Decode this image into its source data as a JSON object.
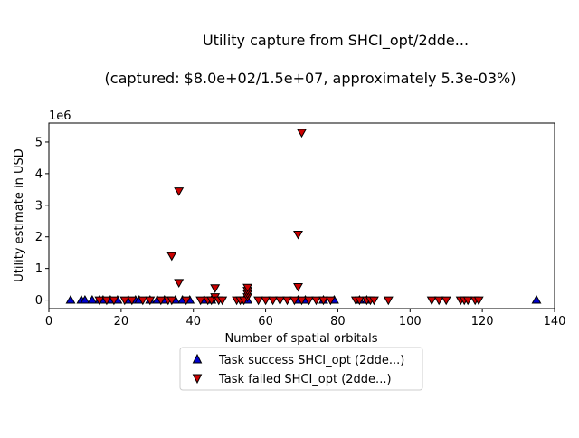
{
  "chart_data": {
    "type": "scatter",
    "title": "Utility capture from SHCI_opt/2dde...",
    "subtitle": "(captured: $8.0e+02/1.5e+07, approximately 5.3e-03%)",
    "xlabel": "Number of spatial orbitals",
    "ylabel": "Utility estimate in USD",
    "y_offset_label": "1e6",
    "xlim": [
      0,
      140
    ],
    "ylim": [
      -0.27,
      5.6
    ],
    "y_scale_factor": 1000000,
    "x_ticks": [
      0,
      20,
      40,
      60,
      80,
      100,
      120,
      140
    ],
    "y_ticks": [
      0,
      1,
      2,
      3,
      4,
      5
    ],
    "grid": false,
    "legend_position": "bottom-center",
    "series": [
      {
        "name": "Task success SHCI_opt (2dde...)",
        "marker": "triangle-up",
        "color": "#0000cc",
        "points": [
          [
            6,
            0
          ],
          [
            9,
            0
          ],
          [
            10,
            0
          ],
          [
            12,
            0
          ],
          [
            14,
            0
          ],
          [
            15,
            0
          ],
          [
            17,
            0
          ],
          [
            19,
            0
          ],
          [
            22,
            0
          ],
          [
            24,
            0
          ],
          [
            25,
            0
          ],
          [
            28,
            0
          ],
          [
            30,
            0
          ],
          [
            32,
            0
          ],
          [
            35,
            0
          ],
          [
            37,
            0
          ],
          [
            39,
            0
          ],
          [
            43,
            0
          ],
          [
            45,
            0
          ],
          [
            54,
            0
          ],
          [
            55,
            0
          ],
          [
            69,
            0
          ],
          [
            71,
            0
          ],
          [
            76,
            0
          ],
          [
            79,
            0
          ],
          [
            86,
            0
          ],
          [
            88,
            0
          ],
          [
            135,
            0
          ]
        ]
      },
      {
        "name": "Task failed SHCI_opt (2dde...)",
        "marker": "triangle-down",
        "color": "#cc0000",
        "points": [
          [
            14,
            0
          ],
          [
            16,
            0
          ],
          [
            18,
            0
          ],
          [
            21,
            0
          ],
          [
            23,
            0
          ],
          [
            26,
            0
          ],
          [
            28,
            0
          ],
          [
            31,
            0
          ],
          [
            33,
            0
          ],
          [
            34,
            0
          ],
          [
            34,
            1.4
          ],
          [
            36,
            0.55
          ],
          [
            36,
            3.45
          ],
          [
            38,
            0
          ],
          [
            42,
            0
          ],
          [
            44,
            0
          ],
          [
            45,
            0
          ],
          [
            46,
            0.1
          ],
          [
            46,
            0.38
          ],
          [
            47,
            0
          ],
          [
            48,
            0
          ],
          [
            52,
            0
          ],
          [
            53,
            0
          ],
          [
            54,
            0
          ],
          [
            55,
            0.1
          ],
          [
            55,
            0.2
          ],
          [
            55,
            0.3
          ],
          [
            55,
            0.4
          ],
          [
            58,
            0
          ],
          [
            60,
            0
          ],
          [
            62,
            0
          ],
          [
            64,
            0
          ],
          [
            66,
            0
          ],
          [
            68,
            0
          ],
          [
            69,
            0.42
          ],
          [
            69,
            2.08
          ],
          [
            70,
            5.3
          ],
          [
            70,
            0
          ],
          [
            72,
            0
          ],
          [
            74,
            0
          ],
          [
            76,
            0
          ],
          [
            78,
            0
          ],
          [
            85,
            0
          ],
          [
            86,
            0
          ],
          [
            88,
            0
          ],
          [
            89,
            0
          ],
          [
            90,
            0
          ],
          [
            94,
            0
          ],
          [
            106,
            0
          ],
          [
            108,
            0
          ],
          [
            110,
            0
          ],
          [
            114,
            0
          ],
          [
            115,
            0
          ],
          [
            116,
            0
          ],
          [
            118,
            0
          ],
          [
            119,
            0
          ]
        ]
      }
    ]
  }
}
